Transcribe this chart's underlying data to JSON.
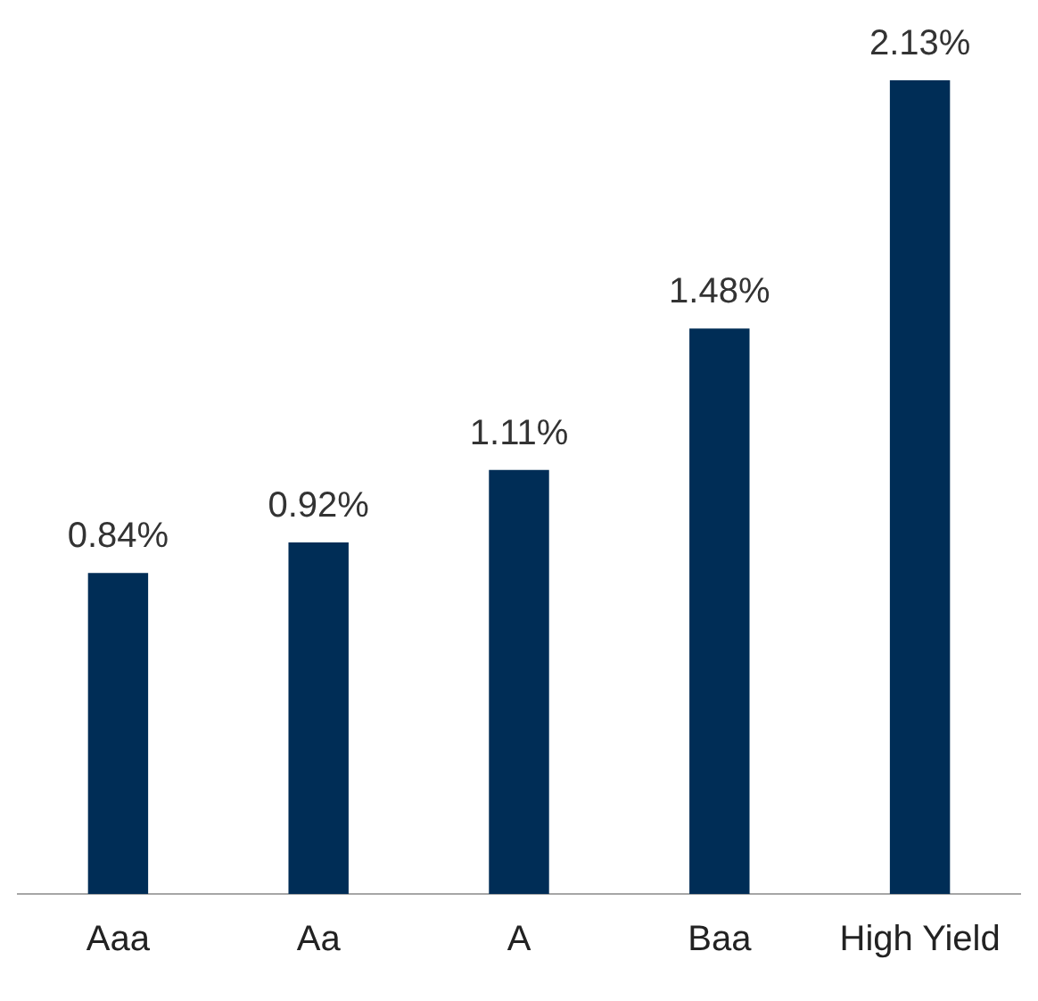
{
  "chart_data": {
    "type": "bar",
    "categories": [
      "Aaa",
      "Aa",
      "A",
      "Baa",
      "High Yield"
    ],
    "values": [
      0.84,
      0.92,
      1.11,
      1.48,
      2.13
    ],
    "color": "#002d56",
    "value_labels": [
      "0.84%",
      "0.92%",
      "1.11%",
      "1.48%",
      "2.13%"
    ],
    "ylim": [
      0,
      2.13
    ],
    "grid": false,
    "legend": false,
    "tick_labels": "x"
  }
}
